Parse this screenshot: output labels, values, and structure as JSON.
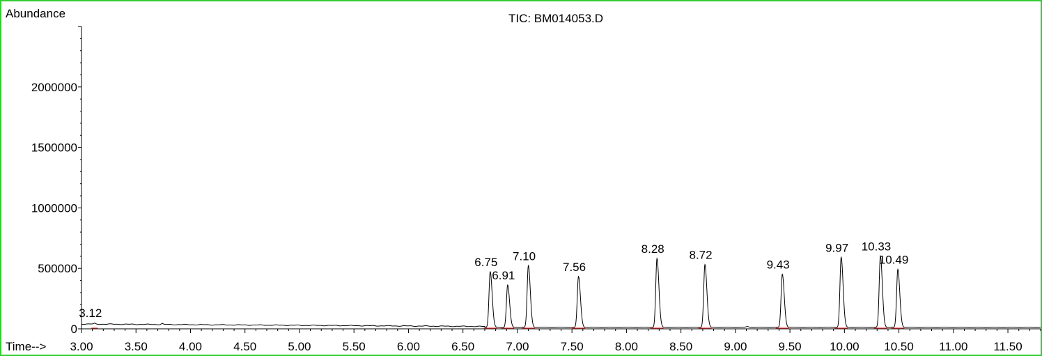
{
  "chart_data": {
    "type": "line",
    "title": "TIC: BM014053.D",
    "ylabel": "Abundance",
    "xlabel": "Time-->",
    "xlim": [
      3.0,
      11.8
    ],
    "ylim": [
      0,
      2500000
    ],
    "x_ticks": [
      "3.00",
      "3.50",
      "4.00",
      "4.50",
      "5.00",
      "5.50",
      "6.00",
      "6.50",
      "7.00",
      "7.50",
      "8.00",
      "8.50",
      "9.00",
      "9.50",
      "10.00",
      "10.50",
      "11.00",
      "11.50"
    ],
    "y_ticks": [
      "0",
      "500000",
      "1000000",
      "1500000",
      "2000000"
    ],
    "grid": false,
    "colors": {
      "frame": "#33cc33",
      "trace": "#000000",
      "baseline_marks": "#e03030"
    },
    "peaks": [
      {
        "label": "3.12",
        "rt": 3.12,
        "height": 40000
      },
      {
        "label": "6.75",
        "rt": 6.75,
        "height": 460000
      },
      {
        "label": "6.91",
        "rt": 6.91,
        "height": 350000
      },
      {
        "label": "7.10",
        "rt": 7.1,
        "height": 510000
      },
      {
        "label": "7.56",
        "rt": 7.56,
        "height": 420000
      },
      {
        "label": "8.28",
        "rt": 8.28,
        "height": 570000
      },
      {
        "label": "8.72",
        "rt": 8.72,
        "height": 520000
      },
      {
        "label": "9.43",
        "rt": 9.43,
        "height": 440000
      },
      {
        "label": "9.97",
        "rt": 9.97,
        "height": 580000
      },
      {
        "label": "10.33",
        "rt": 10.33,
        "height": 590000
      },
      {
        "label": "10.49",
        "rt": 10.49,
        "height": 480000
      }
    ]
  }
}
